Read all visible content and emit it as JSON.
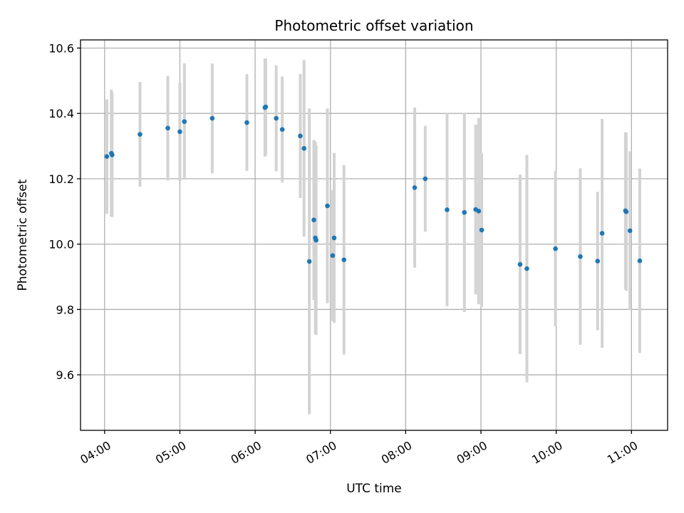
{
  "chart_data": {
    "type": "scatter",
    "title": "Photometric offset variation",
    "xlabel": "UTC time",
    "ylabel": "Photometric offset",
    "x_unit": "hours UTC",
    "xlim": [
      3.68,
      11.48
    ],
    "ylim": [
      9.43,
      10.625
    ],
    "x_ticks": [
      4,
      5,
      6,
      7,
      8,
      9,
      10,
      11
    ],
    "x_tick_labels": [
      "04:00",
      "05:00",
      "06:00",
      "07:00",
      "08:00",
      "09:00",
      "10:00",
      "11:00"
    ],
    "y_ticks": [
      9.6,
      9.8,
      10.0,
      10.2,
      10.4,
      10.6
    ],
    "y_tick_labels": [
      "9.6",
      "9.8",
      "10.0",
      "10.2",
      "10.4",
      "10.6"
    ],
    "grid": true,
    "point_color": "#1f77b4",
    "errorbar_color": "#d3d3d3",
    "points": [
      {
        "x": 4.03,
        "y": 10.268,
        "err": 0.175
      },
      {
        "x": 4.09,
        "y": 10.278,
        "err": 0.195
      },
      {
        "x": 4.1,
        "y": 10.273,
        "err": 0.19
      },
      {
        "x": 4.47,
        "y": 10.336,
        "err": 0.16
      },
      {
        "x": 4.84,
        "y": 10.355,
        "err": 0.16
      },
      {
        "x": 5.0,
        "y": 10.344,
        "err": 0.15
      },
      {
        "x": 5.06,
        "y": 10.375,
        "err": 0.178
      },
      {
        "x": 5.43,
        "y": 10.385,
        "err": 0.168
      },
      {
        "x": 5.89,
        "y": 10.372,
        "err": 0.148
      },
      {
        "x": 6.13,
        "y": 10.418,
        "err": 0.15
      },
      {
        "x": 6.14,
        "y": 10.42,
        "err": 0.148
      },
      {
        "x": 6.28,
        "y": 10.385,
        "err": 0.162
      },
      {
        "x": 6.36,
        "y": 10.351,
        "err": 0.162
      },
      {
        "x": 6.6,
        "y": 10.331,
        "err": 0.19
      },
      {
        "x": 6.65,
        "y": 10.293,
        "err": 0.27
      },
      {
        "x": 6.72,
        "y": 9.947,
        "err": 0.468
      },
      {
        "x": 6.78,
        "y": 10.074,
        "err": 0.245
      },
      {
        "x": 6.8,
        "y": 10.019,
        "err": 0.295
      },
      {
        "x": 6.81,
        "y": 10.012,
        "err": 0.29
      },
      {
        "x": 6.96,
        "y": 10.117,
        "err": 0.298
      },
      {
        "x": 7.03,
        "y": 9.965,
        "err": 0.2
      },
      {
        "x": 7.05,
        "y": 10.019,
        "err": 0.26
      },
      {
        "x": 7.18,
        "y": 9.952,
        "err": 0.29
      },
      {
        "x": 8.12,
        "y": 10.173,
        "err": 0.245
      },
      {
        "x": 8.26,
        "y": 10.2,
        "err": 0.162
      },
      {
        "x": 8.55,
        "y": 10.105,
        "err": 0.295
      },
      {
        "x": 8.78,
        "y": 10.097,
        "err": 0.305
      },
      {
        "x": 8.93,
        "y": 10.106,
        "err": 0.26
      },
      {
        "x": 8.97,
        "y": 10.101,
        "err": 0.285
      },
      {
        "x": 9.01,
        "y": 10.043,
        "err": 0.235
      },
      {
        "x": 9.52,
        "y": 9.938,
        "err": 0.275
      },
      {
        "x": 9.61,
        "y": 9.925,
        "err": 0.348
      },
      {
        "x": 9.99,
        "y": 9.986,
        "err": 0.238
      },
      {
        "x": 10.32,
        "y": 9.962,
        "err": 0.27
      },
      {
        "x": 10.55,
        "y": 9.948,
        "err": 0.212
      },
      {
        "x": 10.61,
        "y": 10.033,
        "err": 0.35
      },
      {
        "x": 10.92,
        "y": 10.102,
        "err": 0.24
      },
      {
        "x": 10.93,
        "y": 10.099,
        "err": 0.242
      },
      {
        "x": 10.98,
        "y": 10.041,
        "err": 0.243
      },
      {
        "x": 11.11,
        "y": 9.949,
        "err": 0.282
      }
    ]
  }
}
